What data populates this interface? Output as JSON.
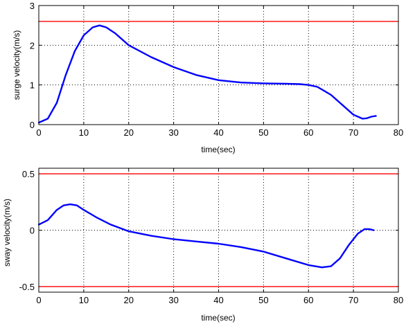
{
  "chart_data": [
    {
      "type": "line",
      "xlabel": "time(sec)",
      "ylabel": "surge velocity(m/s)",
      "xlim": [
        0,
        80
      ],
      "ylim": [
        0,
        3
      ],
      "xticks": [
        "0",
        "10",
        "20",
        "30",
        "40",
        "50",
        "60",
        "70",
        "80"
      ],
      "yticks": [
        "0",
        "1",
        "2",
        "3"
      ],
      "grid": true,
      "series": [
        {
          "color": "#0000ff",
          "x": [
            0,
            2,
            4,
            6,
            8,
            10,
            12,
            13.5,
            15,
            17,
            20,
            25,
            30,
            35,
            40,
            45,
            50,
            55,
            58,
            60,
            62,
            65,
            68,
            70,
            72,
            73,
            74,
            75
          ],
          "y": [
            0.05,
            0.15,
            0.55,
            1.25,
            1.85,
            2.25,
            2.45,
            2.5,
            2.45,
            2.3,
            2.0,
            1.7,
            1.45,
            1.25,
            1.12,
            1.06,
            1.04,
            1.03,
            1.02,
            1.0,
            0.95,
            0.75,
            0.45,
            0.25,
            0.15,
            0.16,
            0.2,
            0.22
          ]
        },
        {
          "color": "#ff0000",
          "x": [
            0,
            80
          ],
          "y": [
            2.6,
            2.6
          ]
        }
      ]
    },
    {
      "type": "line",
      "xlabel": "time(sec)",
      "ylabel": "sway velocity(m/s)",
      "xlim": [
        0,
        80
      ],
      "ylim": [
        -0.55,
        0.55
      ],
      "xticks": [
        "0",
        "10",
        "20",
        "30",
        "40",
        "50",
        "60",
        "70",
        "80"
      ],
      "yticks": [
        "0.5",
        "0",
        "-0.5"
      ],
      "grid": true,
      "series": [
        {
          "color": "#0000ff",
          "x": [
            0,
            2,
            4,
            5.5,
            7,
            8.5,
            10,
            13,
            16,
            20,
            25,
            30,
            35,
            40,
            45,
            50,
            55,
            60,
            63,
            65,
            67,
            69,
            71,
            72.5,
            73.5,
            74.5
          ],
          "y": [
            0.05,
            0.09,
            0.18,
            0.22,
            0.23,
            0.22,
            0.18,
            0.11,
            0.05,
            -0.01,
            -0.05,
            -0.08,
            -0.1,
            -0.12,
            -0.15,
            -0.19,
            -0.25,
            -0.31,
            -0.33,
            -0.32,
            -0.25,
            -0.13,
            -0.03,
            0.01,
            0.01,
            0.0
          ]
        },
        {
          "color": "#ff0000",
          "x": [
            0,
            80
          ],
          "y": [
            0.5,
            0.5
          ]
        },
        {
          "color": "#ff0000",
          "x": [
            0,
            80
          ],
          "y": [
            -0.5,
            -0.5
          ]
        }
      ]
    }
  ]
}
